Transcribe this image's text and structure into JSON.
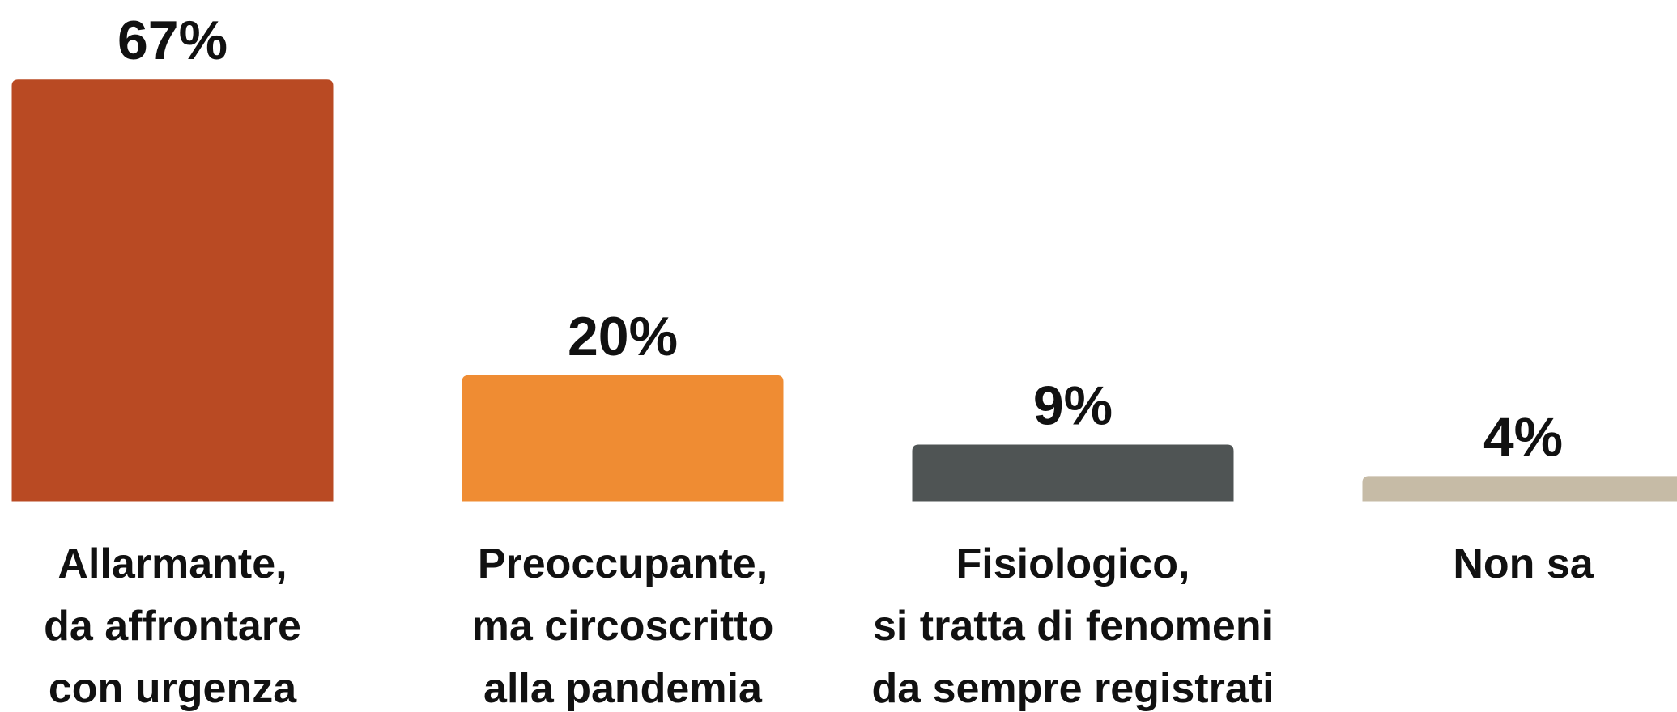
{
  "chart_data": {
    "type": "bar",
    "categories": [
      [
        "Allarmante,",
        "da affrontare",
        "con urgenza"
      ],
      [
        "Preoccupante,",
        "ma circoscritto",
        "alla pandemia"
      ],
      [
        "Fisiologico,",
        "si tratta di fenomeni",
        "da sempre registrati"
      ],
      [
        "Non sa"
      ]
    ],
    "values": [
      67,
      20,
      9,
      4
    ],
    "value_labels": [
      "67%",
      "20%",
      "9%",
      "4%"
    ],
    "colors": [
      "#b94a23",
      "#ef8c33",
      "#4f5454",
      "#c6bba6"
    ]
  }
}
